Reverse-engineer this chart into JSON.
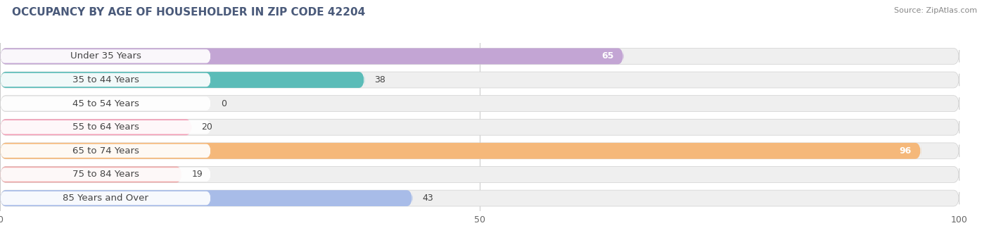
{
  "title": "OCCUPANCY BY AGE OF HOUSEHOLDER IN ZIP CODE 42204",
  "source": "Source: ZipAtlas.com",
  "categories": [
    "Under 35 Years",
    "35 to 44 Years",
    "45 to 54 Years",
    "55 to 64 Years",
    "65 to 74 Years",
    "75 to 84 Years",
    "85 Years and Over"
  ],
  "values": [
    65,
    38,
    0,
    20,
    96,
    19,
    43
  ],
  "bar_colors": [
    "#c3a5d4",
    "#5bbcb8",
    "#b0b0d8",
    "#f4a0b8",
    "#f5b87a",
    "#f0aaaa",
    "#a8bce8"
  ],
  "xlim_min": 0,
  "xlim_max": 100,
  "bar_height": 0.68,
  "label_fontsize": 9.5,
  "title_fontsize": 11,
  "value_fontsize": 9,
  "bg_row_color": "#efefef",
  "label_pill_color": "#ffffff"
}
